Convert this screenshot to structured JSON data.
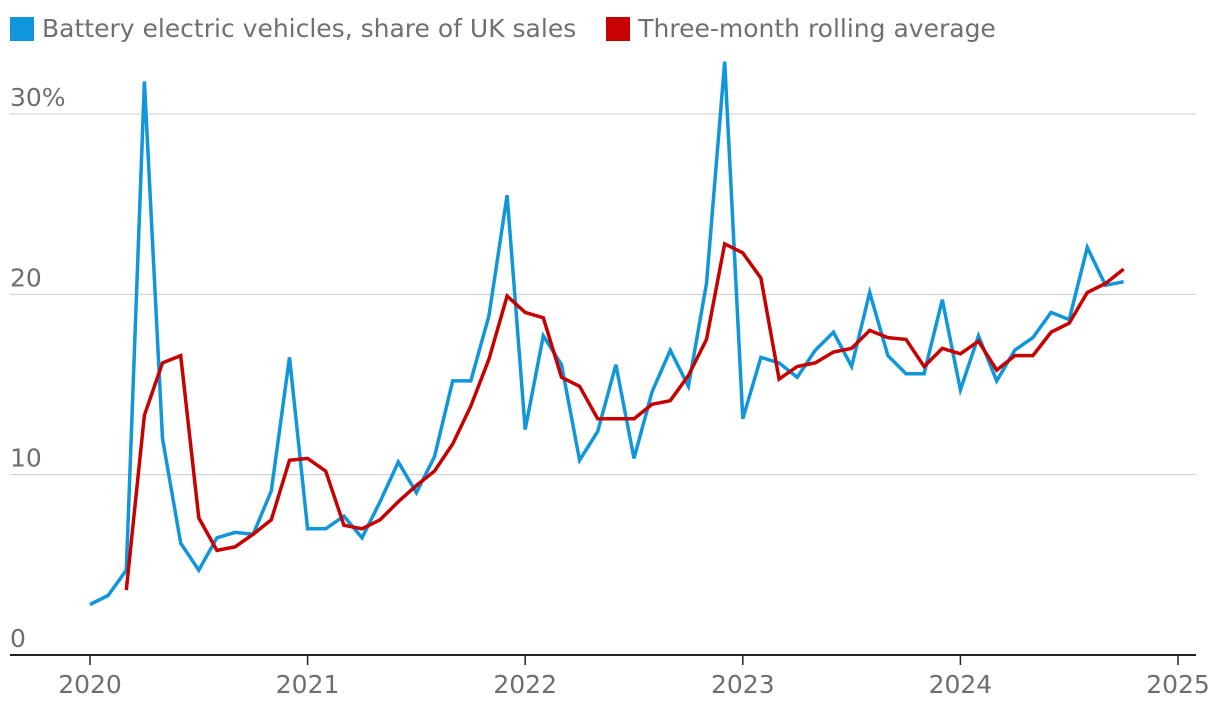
{
  "legend": [
    {
      "label": "Battery electric vehicles, share of UK sales",
      "color": "#0f96db"
    },
    {
      "label": "Three-month rolling average",
      "color": "#c70000"
    }
  ],
  "chart_data": {
    "type": "line",
    "title": "",
    "xlabel": "",
    "ylabel": "",
    "xlim": [
      2020,
      2025
    ],
    "ylim": [
      0,
      33
    ],
    "y_ticks": [
      {
        "value": 0,
        "label": "0"
      },
      {
        "value": 10,
        "label": "10"
      },
      {
        "value": 20,
        "label": "20"
      },
      {
        "value": 30,
        "label": "30%"
      }
    ],
    "x_ticks": [
      {
        "value": 2020,
        "label": "2020"
      },
      {
        "value": 2021,
        "label": "2021"
      },
      {
        "value": 2022,
        "label": "2022"
      },
      {
        "value": 2023,
        "label": "2023"
      },
      {
        "value": 2024,
        "label": "2024"
      },
      {
        "value": 2025,
        "label": "2025"
      }
    ],
    "grid": true,
    "legend_position": "top-left",
    "series": [
      {
        "name": "Battery electric vehicles, share of UK sales",
        "color": "#0f96db",
        "start": "2020-01",
        "values": [
          2.8,
          3.3,
          4.7,
          31.8,
          12.0,
          6.2,
          4.7,
          6.5,
          6.8,
          6.7,
          9.1,
          16.5,
          7.0,
          7.0,
          7.7,
          6.5,
          8.5,
          10.7,
          9.0,
          11.0,
          15.2,
          15.2,
          18.8,
          25.5,
          12.5,
          17.7,
          16.1,
          10.8,
          12.4,
          16.1,
          10.9,
          14.6,
          16.9,
          14.9,
          20.6,
          32.9,
          13.1,
          16.5,
          16.2,
          15.4,
          16.9,
          17.9,
          16.0,
          20.1,
          16.6,
          15.6,
          15.6,
          19.7,
          14.7,
          17.7,
          15.2,
          16.9,
          17.6,
          19.0,
          18.6,
          22.6,
          20.5,
          20.7
        ]
      },
      {
        "name": "Three-month rolling average",
        "color": "#c70000",
        "start": "2020-03",
        "values": [
          3.6,
          13.3,
          16.2,
          16.6,
          7.6,
          5.8,
          6.0,
          6.7,
          7.5,
          10.8,
          10.9,
          10.2,
          7.2,
          7.0,
          7.5,
          8.5,
          9.4,
          10.2,
          11.7,
          13.8,
          16.4,
          19.9,
          19.0,
          18.7,
          15.4,
          14.9,
          13.1,
          13.1,
          13.1,
          13.9,
          14.1,
          15.5,
          17.5,
          22.8,
          22.3,
          20.9,
          15.3,
          16.0,
          16.2,
          16.8,
          17.0,
          18.0,
          17.6,
          17.5,
          16.0,
          17.0,
          16.7,
          17.4,
          15.8,
          16.6,
          16.6,
          17.9,
          18.4,
          20.1,
          20.6,
          21.4
        ]
      }
    ]
  }
}
